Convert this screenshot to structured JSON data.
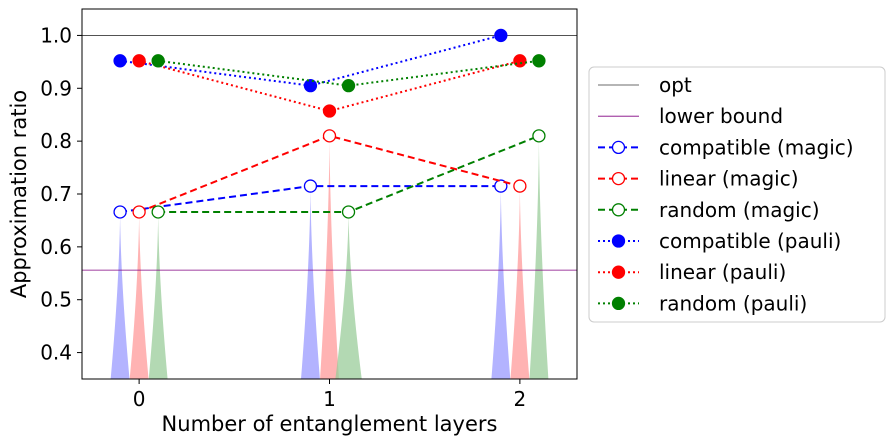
{
  "chart_data": {
    "type": "line",
    "xlabel": "Number of entanglement layers",
    "ylabel": "Approximation ratio",
    "x_ticks": [
      0,
      1,
      2
    ],
    "y_ticks": [
      0.4,
      0.5,
      0.6,
      0.7,
      0.8,
      0.9,
      1.0
    ],
    "y_tick_labels": [
      "0.4",
      "0.5",
      "0.6",
      "0.7",
      "0.8",
      "0.9",
      "1.0"
    ],
    "xlim": [
      -0.3,
      2.3
    ],
    "ylim": [
      0.35,
      1.05
    ],
    "legend_position": "outside-right",
    "opt": {
      "name": "opt",
      "value": 1.0,
      "color": "#3a3a3a"
    },
    "lower_bound": {
      "name": "lower bound",
      "value": 0.556,
      "color": "#800080"
    },
    "series": [
      {
        "name": "compatible (magic)",
        "color": "#0000ff",
        "linestyle": "dashed",
        "marker": "open",
        "x": [
          -0.1,
          0.9,
          1.9
        ],
        "y": [
          0.666,
          0.715,
          0.715
        ]
      },
      {
        "name": "linear (magic)",
        "color": "#ff0000",
        "linestyle": "dashed",
        "marker": "open",
        "x": [
          0.0,
          1.0,
          2.0
        ],
        "y": [
          0.666,
          0.81,
          0.715
        ]
      },
      {
        "name": "random (magic)",
        "color": "#008000",
        "linestyle": "dashed",
        "marker": "open",
        "x": [
          0.1,
          1.1,
          2.1
        ],
        "y": [
          0.666,
          0.666,
          0.81
        ]
      },
      {
        "name": "compatible (pauli)",
        "color": "#0000ff",
        "linestyle": "dotted",
        "marker": "filled",
        "x": [
          -0.1,
          0.9,
          1.9
        ],
        "y": [
          0.952,
          0.905,
          1.0
        ]
      },
      {
        "name": "linear (pauli)",
        "color": "#ff0000",
        "linestyle": "dotted",
        "marker": "filled",
        "x": [
          0.0,
          1.0,
          2.0
        ],
        "y": [
          0.952,
          0.857,
          0.952
        ]
      },
      {
        "name": "random (pauli)",
        "color": "#008000",
        "linestyle": "dotted",
        "marker": "filled",
        "x": [
          0.1,
          1.1,
          2.1
        ],
        "y": [
          0.952,
          0.905,
          0.952
        ]
      }
    ],
    "distributions": [
      {
        "color": "#9999ff",
        "x": -0.1,
        "top": 0.666,
        "spread": 0.05
      },
      {
        "color": "#ff9999",
        "x": 0.0,
        "top": 0.666,
        "spread": 0.05
      },
      {
        "color": "#99cc99",
        "x": 0.1,
        "top": 0.666,
        "spread": 0.05
      },
      {
        "color": "#9999ff",
        "x": 0.9,
        "top": 0.715,
        "spread": 0.05
      },
      {
        "color": "#ff9999",
        "x": 1.0,
        "top": 0.81,
        "spread": 0.05
      },
      {
        "color": "#99cc99",
        "x": 1.1,
        "top": 0.666,
        "spread": 0.07
      },
      {
        "color": "#9999ff",
        "x": 1.9,
        "top": 0.715,
        "spread": 0.05
      },
      {
        "color": "#ff9999",
        "x": 2.0,
        "top": 0.715,
        "spread": 0.05
      },
      {
        "color": "#99cc99",
        "x": 2.1,
        "top": 0.81,
        "spread": 0.05
      }
    ]
  }
}
